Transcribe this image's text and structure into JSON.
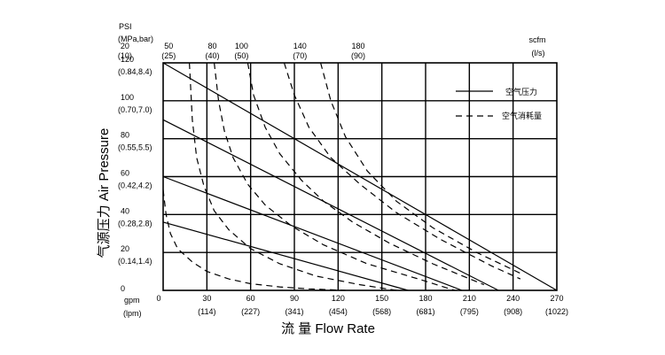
{
  "chart_data": {
    "type": "line",
    "title": "",
    "ylabel": "气源压力 Air Pressure",
    "xlabel": "流 量 Flow Rate",
    "y_unit_primary": "PSI",
    "y_unit_secondary": "(MPa,bar)",
    "x_unit_primary": "gpm",
    "x_unit_secondary": "(lpm)",
    "top_unit_primary": "scfm",
    "top_unit_secondary": "(l/s)",
    "xlim": [
      0,
      270
    ],
    "ylim": [
      0,
      120
    ],
    "grid": true,
    "legend_position": "top-right",
    "legend": [
      {
        "label": "空气压力",
        "style": "solid"
      },
      {
        "label": "空气消耗量",
        "style": "dashed"
      }
    ],
    "x_ticks": [
      {
        "value": 0,
        "label": "0",
        "sub": ""
      },
      {
        "value": 30,
        "label": "30",
        "sub": "(114)"
      },
      {
        "value": 60,
        "label": "60",
        "sub": "(227)"
      },
      {
        "value": 90,
        "label": "90",
        "sub": "(341)"
      },
      {
        "value": 120,
        "label": "120",
        "sub": "(454)"
      },
      {
        "value": 150,
        "label": "150",
        "sub": "(568)"
      },
      {
        "value": 180,
        "label": "180",
        "sub": "(681)"
      },
      {
        "value": 210,
        "label": "210",
        "sub": "(795)"
      },
      {
        "value": 240,
        "label": "240",
        "sub": "(908)"
      },
      {
        "value": 270,
        "label": "270",
        "sub": "(1022)"
      }
    ],
    "y_ticks": [
      {
        "value": 0,
        "label": "0",
        "sub": ""
      },
      {
        "value": 20,
        "label": "20",
        "sub": "(0.14,1.4)"
      },
      {
        "value": 40,
        "label": "40",
        "sub": "(0.28,2.8)"
      },
      {
        "value": 60,
        "label": "60",
        "sub": "(0.42,4.2)"
      },
      {
        "value": 80,
        "label": "80",
        "sub": "(0.55,5.5)"
      },
      {
        "value": 100,
        "label": "100",
        "sub": "(0.70,7.0)"
      },
      {
        "value": 120,
        "label": "120",
        "sub": "(0.84,8.4)"
      }
    ],
    "air_consumption_ticks": [
      {
        "value": 20,
        "label": "20",
        "sub": "(10)"
      },
      {
        "value": 50,
        "label": "50",
        "sub": "(25)"
      },
      {
        "value": 80,
        "label": "80",
        "sub": "(40)"
      },
      {
        "value": 100,
        "label": "100",
        "sub": "(50)"
      },
      {
        "value": 140,
        "label": "140",
        "sub": "(70)"
      },
      {
        "value": 180,
        "label": "180",
        "sub": "(90)"
      }
    ],
    "series": [
      {
        "style": "solid",
        "x": [
          0,
          270
        ],
        "y": [
          120,
          0
        ]
      },
      {
        "style": "solid",
        "x": [
          0,
          230
        ],
        "y": [
          90,
          0
        ]
      },
      {
        "style": "solid",
        "x": [
          0,
          205
        ],
        "y": [
          60,
          0
        ]
      },
      {
        "style": "solid",
        "x": [
          0,
          168
        ],
        "y": [
          36,
          0
        ]
      },
      {
        "style": "dashed",
        "x": [
          0,
          2,
          5,
          10,
          20,
          30,
          45,
          60,
          80,
          100,
          125
        ],
        "y": [
          53,
          40,
          30,
          22,
          15,
          10,
          6,
          3.5,
          1.8,
          0.8,
          0
        ]
      },
      {
        "style": "dashed",
        "x": [
          18,
          20,
          23,
          28,
          35,
          45,
          60,
          80,
          105,
          135,
          160
        ],
        "y": [
          120,
          90,
          70,
          55,
          42,
          32,
          22,
          14,
          7.5,
          3,
          0
        ]
      },
      {
        "style": "dashed",
        "x": [
          35,
          38,
          42,
          48,
          58,
          70,
          88,
          110,
          140,
          175,
          200
        ],
        "y": [
          120,
          100,
          84,
          70,
          56,
          45,
          34,
          24,
          14,
          6,
          0
        ]
      },
      {
        "style": "dashed",
        "x": [
          58,
          62,
          70,
          80,
          95,
          110,
          130,
          155,
          185,
          220
        ],
        "y": [
          120,
          103,
          86,
          72,
          58,
          47,
          36,
          25,
          14,
          3
        ]
      },
      {
        "style": "dashed",
        "x": [
          83,
          90,
          100,
          115,
          135,
          160,
          190,
          225,
          245
        ],
        "y": [
          120,
          103,
          86,
          70,
          56,
          41,
          27,
          13,
          6
        ]
      },
      {
        "style": "dashed",
        "x": [
          108,
          115,
          125,
          140,
          160,
          185,
          215,
          245
        ],
        "y": [
          120,
          100,
          81,
          63,
          47,
          33,
          20,
          9
        ]
      }
    ]
  }
}
